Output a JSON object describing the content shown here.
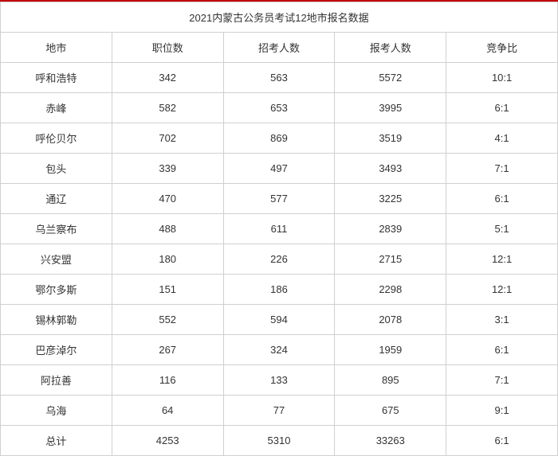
{
  "table": {
    "title": "2021内蒙古公务员考试12地市报名数据",
    "columns": [
      "地市",
      "职位数",
      "招考人数",
      "报考人数",
      "竞争比"
    ],
    "rows": [
      [
        "呼和浩特",
        "342",
        "563",
        "5572",
        "10:1"
      ],
      [
        "赤峰",
        "582",
        "653",
        "3995",
        "6:1"
      ],
      [
        "呼伦贝尔",
        "702",
        "869",
        "3519",
        "4:1"
      ],
      [
        "包头",
        "339",
        "497",
        "3493",
        "7:1"
      ],
      [
        "通辽",
        "470",
        "577",
        "3225",
        "6:1"
      ],
      [
        "乌兰察布",
        "488",
        "611",
        "2839",
        "5:1"
      ],
      [
        "兴安盟",
        "180",
        "226",
        "2715",
        "12:1"
      ],
      [
        "鄂尔多斯",
        "151",
        "186",
        "2298",
        "12:1"
      ],
      [
        "锡林郭勒",
        "552",
        "594",
        "2078",
        "3:1"
      ],
      [
        "巴彦淖尔",
        "267",
        "324",
        "1959",
        "6:1"
      ],
      [
        "阿拉善",
        "116",
        "133",
        "895",
        "7:1"
      ],
      [
        "乌海",
        "64",
        "77",
        "675",
        "9:1"
      ],
      [
        "总计",
        "4253",
        "5310",
        "33263",
        "6:1"
      ]
    ],
    "styling": {
      "border_top_color": "#c00000",
      "border_color": "#d0d0d0",
      "text_color": "#333333",
      "background_color": "#ffffff",
      "font_size": 13,
      "cell_padding": "9px 4px"
    }
  }
}
